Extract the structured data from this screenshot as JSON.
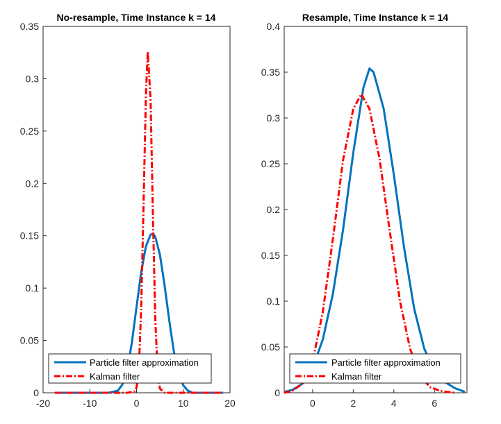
{
  "colors": {
    "pf": "#0072BD",
    "kf": "#FF0000",
    "axis": "#262626"
  },
  "chart_data": [
    {
      "type": "line",
      "title": "No-resample, Time Instance k = 14",
      "xlim": [
        -20,
        20
      ],
      "ylim": [
        0,
        0.35
      ],
      "xticks": [
        -20,
        -10,
        0,
        10,
        20
      ],
      "xtick_labels": [
        "-20",
        "-10",
        "0",
        "10",
        "20"
      ],
      "yticks": [
        0,
        0.05,
        0.1,
        0.15,
        0.2,
        0.25,
        0.3,
        0.35
      ],
      "ytick_labels": [
        "0",
        "0.05",
        "0.1",
        "0.15",
        "0.2",
        "0.25",
        "0.3",
        "0.35"
      ],
      "legend_position": "bottom",
      "grid": false,
      "series": [
        {
          "name": "Particle filter approximation",
          "style": "solid",
          "color": "#0072BD",
          "points": [
            [
              -17.5,
              0
            ],
            [
              -6,
              0.0
            ],
            [
              -4,
              0.002
            ],
            [
              -3,
              0.008
            ],
            [
              -2,
              0.022
            ],
            [
              -1,
              0.048
            ],
            [
              0,
              0.082
            ],
            [
              1,
              0.115
            ],
            [
              2,
              0.14
            ],
            [
              3,
              0.151
            ],
            [
              3.5,
              0.152
            ],
            [
              4,
              0.149
            ],
            [
              5,
              0.132
            ],
            [
              6,
              0.103
            ],
            [
              7,
              0.069
            ],
            [
              8,
              0.039
            ],
            [
              9,
              0.018
            ],
            [
              10,
              0.007
            ],
            [
              11,
              0.002
            ],
            [
              12,
              0.0
            ],
            [
              18.5,
              0
            ]
          ]
        },
        {
          "name": "Kalman filter",
          "style": "dashdot",
          "color": "#FF0000",
          "points": [
            [
              -17.5,
              0
            ],
            [
              -2,
              0
            ],
            [
              -0.5,
              0.001
            ],
            [
              0,
              0.005
            ],
            [
              0.5,
              0.024
            ],
            [
              1,
              0.081
            ],
            [
              1.5,
              0.18
            ],
            [
              2,
              0.285
            ],
            [
              2.4,
              0.326
            ],
            [
              3,
              0.28
            ],
            [
              3.5,
              0.172
            ],
            [
              4,
              0.072
            ],
            [
              4.5,
              0.02
            ],
            [
              5,
              0.004
            ],
            [
              6,
              0.0
            ],
            [
              18.5,
              0
            ]
          ]
        }
      ]
    },
    {
      "type": "line",
      "title": "Resample, Time Instance k = 14",
      "xlim": [
        -1.4,
        7.6
      ],
      "ylim": [
        0,
        0.4
      ],
      "xticks": [
        0,
        2,
        4,
        6
      ],
      "xtick_labels": [
        "0",
        "2",
        "4",
        "6"
      ],
      "yticks": [
        0,
        0.05,
        0.1,
        0.15,
        0.2,
        0.25,
        0.3,
        0.35,
        0.4
      ],
      "ytick_labels": [
        "0",
        "0.05",
        "0.1",
        "0.15",
        "0.2",
        "0.25",
        "0.3",
        "0.35",
        "0.4"
      ],
      "legend_position": "bottom",
      "grid": false,
      "series": [
        {
          "name": "Particle filter approximation",
          "style": "solid",
          "color": "#0072BD",
          "points": [
            [
              -1.4,
              0.001
            ],
            [
              -1,
              0.003
            ],
            [
              -0.5,
              0.01
            ],
            [
              0,
              0.027
            ],
            [
              0.5,
              0.058
            ],
            [
              1,
              0.108
            ],
            [
              1.5,
              0.178
            ],
            [
              2,
              0.262
            ],
            [
              2.5,
              0.333
            ],
            [
              2.8,
              0.354
            ],
            [
              3,
              0.35
            ],
            [
              3.5,
              0.31
            ],
            [
              4,
              0.238
            ],
            [
              4.5,
              0.159
            ],
            [
              5,
              0.092
            ],
            [
              5.5,
              0.048
            ],
            [
              6,
              0.024
            ],
            [
              6.5,
              0.012
            ],
            [
              7,
              0.005
            ],
            [
              7.5,
              0.001
            ]
          ]
        },
        {
          "name": "Kalman filter",
          "style": "dashdot",
          "color": "#FF0000",
          "points": [
            [
              -1.4,
              0.0
            ],
            [
              -1,
              0.002
            ],
            [
              -0.5,
              0.01
            ],
            [
              0,
              0.034
            ],
            [
              0.5,
              0.088
            ],
            [
              1,
              0.168
            ],
            [
              1.5,
              0.254
            ],
            [
              2,
              0.31
            ],
            [
              2.4,
              0.326
            ],
            [
              2.8,
              0.31
            ],
            [
              3.3,
              0.255
            ],
            [
              3.8,
              0.176
            ],
            [
              4.3,
              0.1
            ],
            [
              4.8,
              0.048
            ],
            [
              5.3,
              0.018
            ],
            [
              5.8,
              0.006
            ],
            [
              6.3,
              0.002
            ],
            [
              7,
              0.0
            ]
          ]
        }
      ]
    }
  ]
}
